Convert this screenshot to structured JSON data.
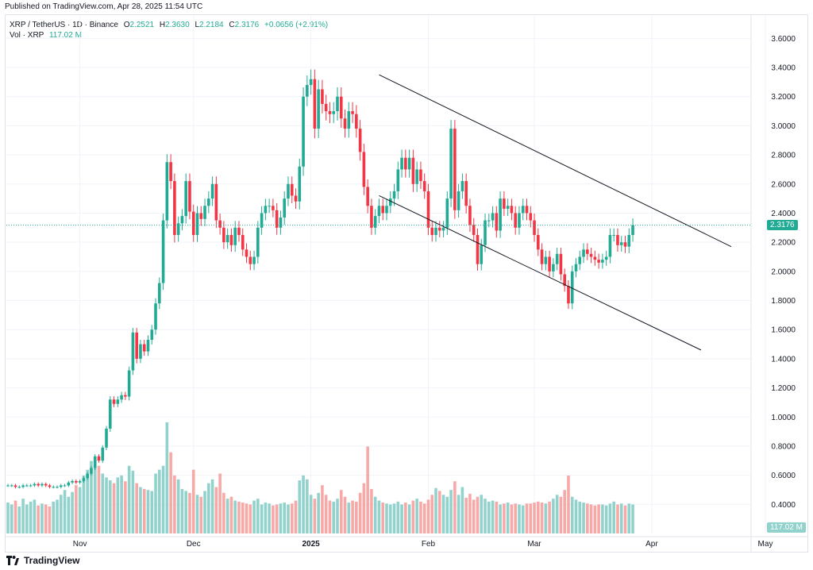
{
  "header": {
    "published": "Published on TradingView.com, Apr 28, 2025 11:54 UTC"
  },
  "legend": {
    "symbol": "XRP / TetherUS · 1D · Binance",
    "o_label": "O",
    "o": "2.2521",
    "h_label": "H",
    "h": "2.3630",
    "l_label": "L",
    "l": "2.2184",
    "c_label": "C",
    "c": "2.3176",
    "change": "+0.0656 (+2.91%)",
    "vol_label": "Vol · XRP",
    "vol": "117.02 M"
  },
  "badges": {
    "last_price": "2.3176",
    "last_volume": "117.02 M"
  },
  "footer": {
    "brand": "TradingView",
    "logo_icon": "tradingview-logo-icon"
  },
  "colors": {
    "up": "#22ab94",
    "down": "#f23645",
    "vol_up": "#92d2cc",
    "vol_down": "#f7a9a7"
  },
  "chart_data": {
    "type": "candlestick",
    "title": "XRP / TetherUS · 1D · Binance",
    "ylim": [
      0.0,
      3.8
    ],
    "y_ticks": [
      "3.6000",
      "3.4000",
      "3.2000",
      "3.0000",
      "2.8000",
      "2.6000",
      "2.4000",
      "2.2000",
      "2.0000",
      "1.8000",
      "1.6000",
      "1.4000",
      "1.2000",
      "1.0000",
      "0.8000",
      "0.6000",
      "0.4000"
    ],
    "x_ticks": [
      {
        "label": "Nov",
        "date": "2024-11-01",
        "bold": false
      },
      {
        "label": "Dec",
        "date": "2024-12-01",
        "bold": false
      },
      {
        "label": "2025",
        "date": "2025-01-01",
        "bold": true
      },
      {
        "label": "Feb",
        "date": "2025-02-01",
        "bold": false
      },
      {
        "label": "Mar",
        "date": "2025-03-01",
        "bold": false
      },
      {
        "label": "Apr",
        "date": "2025-04-01",
        "bold": false
      },
      {
        "label": "May",
        "date": "2025-05-01",
        "bold": false
      }
    ],
    "start_date": "2024-10-13",
    "close": [
      0.53,
      0.53,
      0.52,
      0.52,
      0.53,
      0.53,
      0.53,
      0.54,
      0.53,
      0.54,
      0.53,
      0.52,
      0.52,
      0.52,
      0.53,
      0.53,
      0.55,
      0.56,
      0.55,
      0.56,
      0.58,
      0.61,
      0.65,
      0.73,
      0.7,
      0.79,
      0.92,
      1.12,
      1.09,
      1.12,
      1.15,
      1.14,
      1.32,
      1.58,
      1.4,
      1.5,
      1.45,
      1.53,
      1.6,
      1.78,
      1.92,
      2.35,
      2.75,
      2.62,
      2.25,
      2.33,
      2.38,
      2.62,
      2.41,
      2.25,
      2.4,
      2.36,
      2.45,
      2.5,
      2.6,
      2.35,
      2.3,
      2.2,
      2.25,
      2.18,
      2.3,
      2.25,
      2.15,
      2.1,
      2.05,
      2.1,
      2.3,
      2.4,
      2.45,
      2.45,
      2.42,
      2.3,
      2.37,
      2.5,
      2.6,
      2.52,
      2.48,
      2.72,
      3.2,
      3.28,
      3.32,
      2.98,
      3.25,
      3.15,
      3.1,
      3.08,
      3.1,
      3.2,
      3.05,
      2.98,
      3.1,
      3.08,
      2.98,
      2.82,
      2.58,
      2.45,
      2.3,
      2.38,
      2.45,
      2.4,
      2.45,
      2.5,
      2.55,
      2.7,
      2.78,
      2.7,
      2.78,
      2.6,
      2.7,
      2.62,
      2.55,
      2.3,
      2.25,
      2.3,
      2.28,
      2.3,
      2.5,
      2.98,
      2.42,
      2.55,
      2.62,
      2.45,
      2.32,
      2.25,
      2.05,
      2.18,
      2.35,
      2.35,
      2.4,
      2.28,
      2.5,
      2.43,
      2.45,
      2.4,
      2.3,
      2.4,
      2.45,
      2.4,
      2.35,
      2.25,
      2.15,
      2.05,
      2.1,
      2.0,
      2.05,
      2.12,
      1.98,
      1.9,
      1.78,
      2.0,
      2.05,
      2.1,
      2.15,
      2.12,
      2.1,
      2.08,
      2.06,
      2.08,
      2.1,
      2.25,
      2.25,
      2.18,
      2.2,
      2.17,
      2.25,
      2.3176
    ],
    "volume": [
      0.32,
      0.3,
      0.34,
      0.28,
      0.36,
      0.3,
      0.33,
      0.35,
      0.29,
      0.31,
      0.3,
      0.28,
      0.33,
      0.35,
      0.4,
      0.45,
      0.38,
      0.43,
      0.5,
      0.48,
      0.6,
      0.66,
      0.75,
      0.68,
      0.7,
      0.62,
      0.58,
      0.55,
      0.52,
      0.58,
      0.6,
      0.54,
      0.7,
      0.65,
      0.52,
      0.48,
      0.46,
      0.45,
      0.44,
      0.62,
      0.66,
      0.7,
      1.15,
      0.84,
      0.6,
      0.56,
      0.46,
      0.44,
      0.42,
      0.66,
      0.4,
      0.38,
      0.44,
      0.52,
      0.56,
      0.48,
      0.62,
      0.42,
      0.36,
      0.38,
      0.34,
      0.33,
      0.32,
      0.31,
      0.3,
      0.34,
      0.36,
      0.3,
      0.32,
      0.31,
      0.29,
      0.3,
      0.31,
      0.32,
      0.3,
      0.31,
      0.34,
      0.55,
      0.6,
      0.56,
      0.4,
      0.36,
      0.42,
      0.5,
      0.4,
      0.34,
      0.33,
      0.36,
      0.45,
      0.38,
      0.32,
      0.34,
      0.33,
      0.42,
      0.52,
      0.9,
      0.46,
      0.38,
      0.34,
      0.32,
      0.31,
      0.3,
      0.31,
      0.33,
      0.3,
      0.32,
      0.3,
      0.34,
      0.36,
      0.33,
      0.31,
      0.35,
      0.4,
      0.47,
      0.44,
      0.4,
      0.38,
      0.45,
      0.54,
      0.4,
      0.48,
      0.37,
      0.41,
      0.35,
      0.38,
      0.4,
      0.36,
      0.33,
      0.34,
      0.33,
      0.3,
      0.31,
      0.32,
      0.3,
      0.31,
      0.3,
      0.29,
      0.31,
      0.31,
      0.32,
      0.33,
      0.32,
      0.31,
      0.33,
      0.36,
      0.4,
      0.38,
      0.45,
      0.6,
      0.38,
      0.35,
      0.33,
      0.32,
      0.31,
      0.3,
      0.29,
      0.3,
      0.3,
      0.29,
      0.31,
      0.33,
      0.3,
      0.31,
      0.29,
      0.31,
      0.3
    ]
  }
}
